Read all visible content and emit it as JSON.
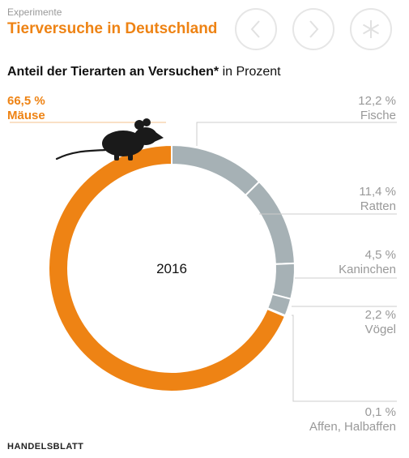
{
  "header": {
    "kicker": "Experimente",
    "title": "Tierversuche in Deutschland",
    "subtitle_bold": "Anteil der Tierarten an Versuchen*",
    "subtitle_rest": " in Prozent"
  },
  "nav": {
    "prev_icon": "chevron-left-icon",
    "next_icon": "chevron-right-icon",
    "asterisk_icon": "asterisk-icon"
  },
  "footer": {
    "source": "HANDELSBLATT"
  },
  "colors": {
    "accent": "#ee8314",
    "gray": "#a6b1b5",
    "text_gray": "#999999"
  },
  "chart_data": {
    "type": "pie",
    "variant": "donut",
    "center_label": "2016",
    "unit": "%",
    "slices": [
      {
        "label": "Fische",
        "value": 12.2,
        "display": "12,2 %",
        "color": "#a6b1b5"
      },
      {
        "label": "Ratten",
        "value": 11.4,
        "display": "11,4 %",
        "color": "#a6b1b5"
      },
      {
        "label": "Kaninchen",
        "value": 4.5,
        "display": "4,5 %",
        "color": "#a6b1b5"
      },
      {
        "label": "Vögel",
        "value": 2.2,
        "display": "2,2 %",
        "color": "#a6b1b5"
      },
      {
        "label": "Affen, Halbaffen",
        "value": 0.1,
        "display": "0,1 %",
        "color": "#a6b1b5"
      },
      {
        "label": "Mäuse",
        "value": 66.5,
        "display": "66,5 %",
        "color": "#ee8314"
      }
    ],
    "icon": "mouse-icon"
  }
}
